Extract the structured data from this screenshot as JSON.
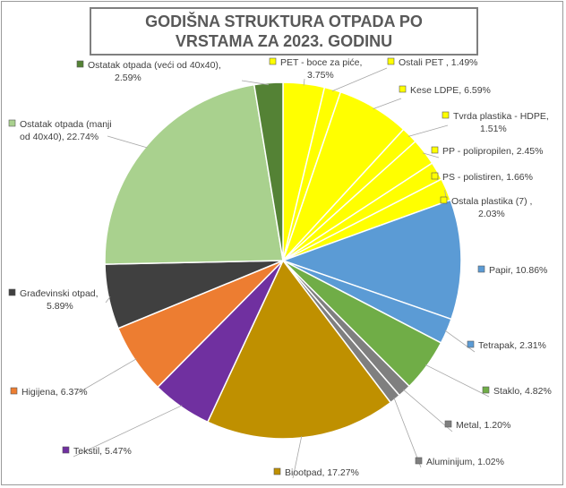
{
  "chart_data": {
    "type": "pie",
    "title": "GODIŠNA STRUKTURA OTPADA PO VRSTAMA ZA 2023. GODINU",
    "slices": [
      {
        "name": "PET - boce za piće",
        "value": 3.75,
        "label_lines": [
          "PET - boce za piće,",
          "3.75%"
        ],
        "color": "#ffff00"
      },
      {
        "name": "Ostali PET",
        "value": 1.49,
        "label_lines": [
          "Ostali PET , 1.49%"
        ],
        "color": "#ffff00"
      },
      {
        "name": "Kese LDPE",
        "value": 6.59,
        "label_lines": [
          "Kese LDPE, 6.59%"
        ],
        "color": "#ffff00"
      },
      {
        "name": "Tvrda plastika - HDPE",
        "value": 1.51,
        "label_lines": [
          "Tvrda plastika - HDPE,",
          "1.51%"
        ],
        "color": "#ffff00"
      },
      {
        "name": "PP - polipropilen",
        "value": 2.45,
        "label_lines": [
          "PP - polipropilen, 2.45%"
        ],
        "color": "#ffff00"
      },
      {
        "name": "PS - polistiren",
        "value": 1.66,
        "label_lines": [
          "PS - polistiren, 1.66%"
        ],
        "color": "#ffff00"
      },
      {
        "name": "Ostala plastika (7)",
        "value": 2.03,
        "label_lines": [
          "Ostala plastika (7) ,",
          "2.03%"
        ],
        "color": "#ffff00"
      },
      {
        "name": "Papir",
        "value": 10.86,
        "label_lines": [
          "Papir, 10.86%"
        ],
        "color": "#5b9bd5"
      },
      {
        "name": "Tetrapak",
        "value": 2.31,
        "label_lines": [
          "Tetrapak, 2.31%"
        ],
        "color": "#5b9bd5"
      },
      {
        "name": "Staklo",
        "value": 4.82,
        "label_lines": [
          "Staklo, 4.82%"
        ],
        "color": "#70ad47"
      },
      {
        "name": "Metal",
        "value": 1.2,
        "label_lines": [
          "Metal, 1.20%"
        ],
        "color": "#7f7f7f"
      },
      {
        "name": "Aluminijum",
        "value": 1.02,
        "label_lines": [
          "Aluminijum, 1.02%"
        ],
        "color": "#7f7f7f"
      },
      {
        "name": "Biootpad",
        "value": 17.27,
        "label_lines": [
          "Biootpad, 17.27%"
        ],
        "color": "#bf9000"
      },
      {
        "name": "Tekstil",
        "value": 5.47,
        "label_lines": [
          "Tekstil, 5.47%"
        ],
        "color": "#7030a0"
      },
      {
        "name": "Higijena",
        "value": 6.37,
        "label_lines": [
          "Higijena, 6.37%"
        ],
        "color": "#ed7d31"
      },
      {
        "name": "Građevinski otpad",
        "value": 5.89,
        "label_lines": [
          "Građevinski otpad,",
          "5.89%"
        ],
        "color": "#404040"
      },
      {
        "name": "Ostatak otpada (manji od 40x40)",
        "value": 22.74,
        "label_lines": [
          "Ostatak otpada (manji",
          "od 40x40), 22.74%"
        ],
        "color": "#a9d18e"
      },
      {
        "name": "Ostatak otpada (veći od 40x40)",
        "value": 2.59,
        "label_lines": [
          "Ostatak otpada (veći od 40x40),",
          "2.59%"
        ],
        "color": "#548235"
      }
    ]
  }
}
